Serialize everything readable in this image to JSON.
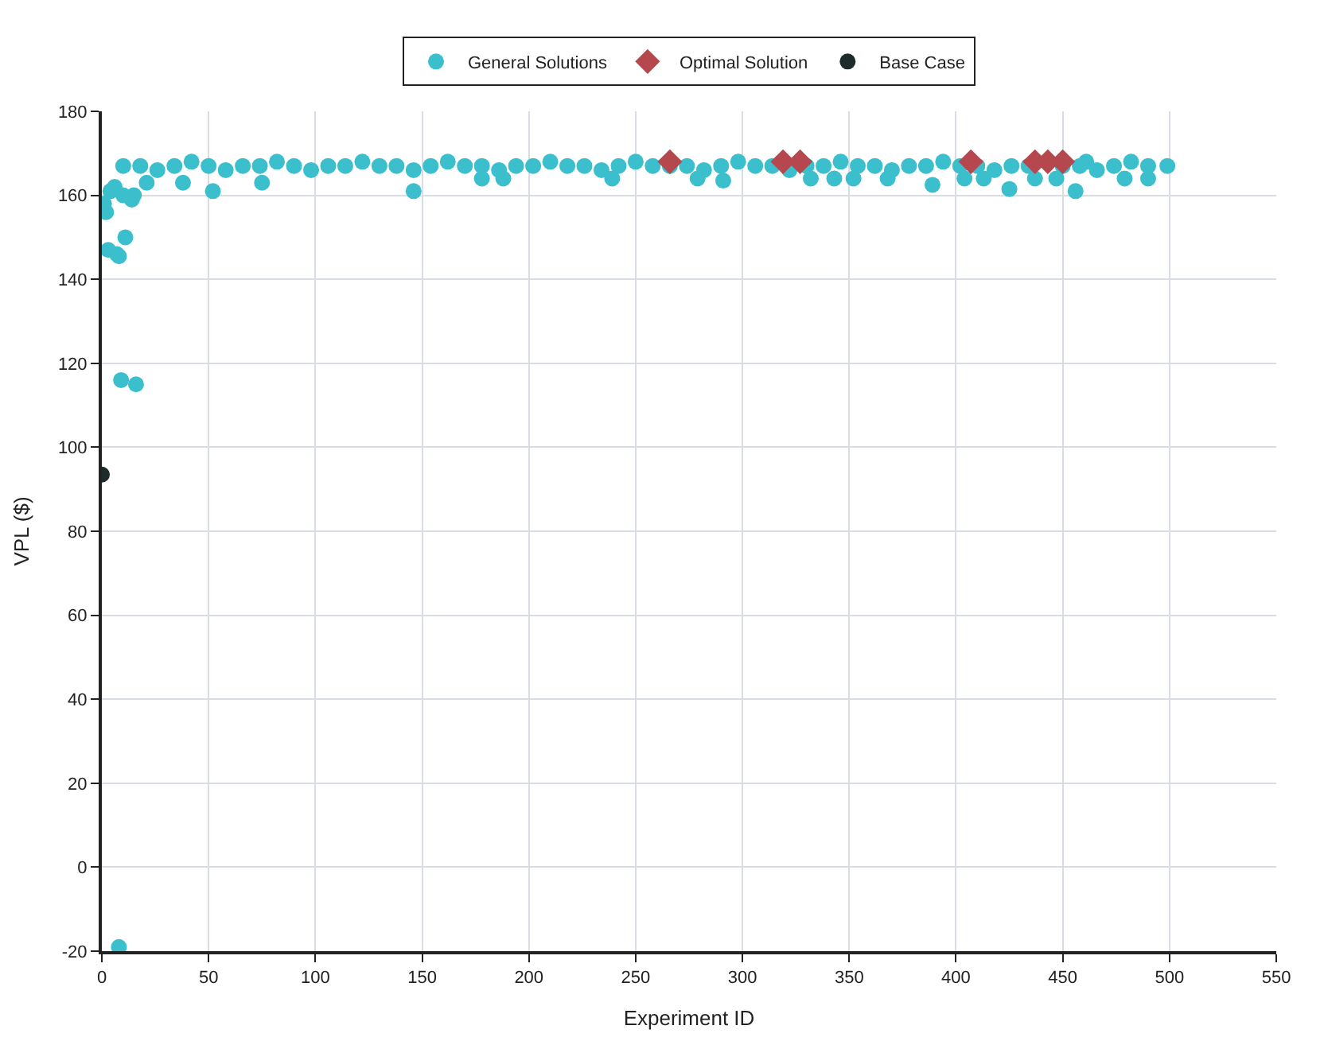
{
  "chart_data": {
    "type": "scatter",
    "xlabel": "Experiment ID",
    "ylabel": "VPL ($)",
    "xlim": [
      0,
      550
    ],
    "xticks": [
      0,
      50,
      100,
      150,
      200,
      250,
      300,
      350,
      400,
      450,
      500,
      550
    ],
    "ylim": [
      -20,
      180
    ],
    "yticks": [
      -20,
      0,
      20,
      40,
      60,
      80,
      100,
      120,
      140,
      160,
      180
    ],
    "grid": true,
    "legend": "top",
    "series": [
      {
        "name": "General Solutions",
        "color": "#3bbfcc",
        "marker": "circle",
        "x": [
          1,
          2,
          3,
          4,
          6,
          7,
          8,
          8,
          9,
          10,
          11,
          14,
          15,
          16,
          21,
          38,
          52,
          75,
          146,
          178,
          188,
          239,
          279,
          291,
          332,
          343,
          352,
          368,
          389,
          404,
          413,
          425,
          437,
          447,
          456,
          479,
          490,
          10,
          18,
          26,
          34,
          42,
          50,
          58,
          66,
          74,
          82,
          90,
          98,
          106,
          114,
          122,
          130,
          138,
          146,
          154,
          162,
          170,
          178,
          186,
          194,
          202,
          210,
          218,
          226,
          234,
          242,
          250,
          258,
          266,
          274,
          282,
          290,
          298,
          306,
          314,
          322,
          330,
          338,
          346,
          354,
          362,
          370,
          378,
          386,
          394,
          402,
          410,
          418,
          426,
          434,
          461,
          450,
          458,
          466,
          474,
          482,
          490,
          499
        ],
        "values": [
          158,
          156,
          147,
          161,
          162,
          146,
          145.5,
          -19,
          116,
          160,
          150,
          159,
          160,
          115,
          163,
          163,
          161,
          163,
          161,
          164,
          164,
          164,
          164,
          163.5,
          164,
          164,
          164,
          164,
          162.5,
          164,
          164,
          161.5,
          164,
          164,
          161,
          164,
          164,
          167,
          167,
          166,
          167,
          168,
          167,
          166,
          167,
          167,
          168,
          167,
          166,
          167,
          167,
          168,
          167,
          167,
          166,
          167,
          168,
          167,
          167,
          166,
          167,
          167,
          168,
          167,
          167,
          166,
          167,
          168,
          167,
          167,
          167,
          166,
          167,
          168,
          167,
          167,
          166,
          167,
          167,
          168,
          167,
          167,
          166,
          167,
          167,
          168,
          167,
          167,
          166,
          167,
          167,
          168,
          167,
          167,
          166,
          167,
          168,
          167,
          167
        ]
      },
      {
        "name": "Optimal Solution",
        "color": "#b5484f",
        "marker": "diamond",
        "x": [
          266,
          319,
          327,
          407,
          437,
          443,
          450
        ],
        "values": [
          168,
          168,
          168,
          168,
          168,
          168,
          168
        ]
      },
      {
        "name": "Base Case",
        "color": "#1d2b2b",
        "marker": "circle",
        "x": [
          0
        ],
        "values": [
          93.5
        ]
      }
    ]
  }
}
